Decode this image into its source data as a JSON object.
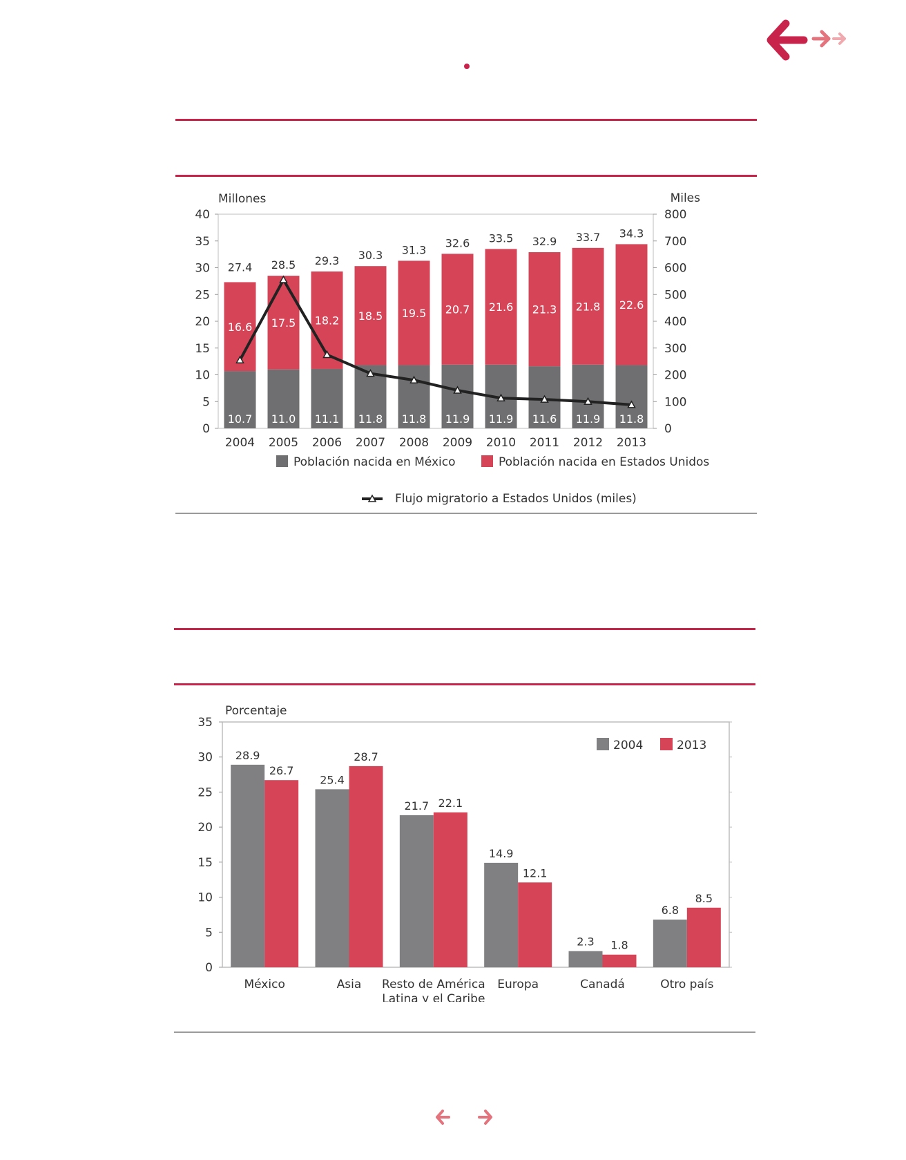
{
  "colors": {
    "accent": "#c8234b",
    "mexico_gray": "#6f6f71",
    "us_red": "#d54557",
    "gray_2004": "#808083",
    "red_2013": "#d54557",
    "line": "#222222",
    "rule_gray": "#9a9a9a"
  },
  "nav": {
    "back_icon": "arrow-left-icon",
    "forward_icon": "arrow-right-icon",
    "bottom_prev_icon": "arrow-left-small-icon",
    "bottom_next_icon": "arrow-right-small-icon"
  },
  "chart_data": [
    {
      "type": "bar",
      "stacked": true,
      "categories": [
        "2004",
        "2005",
        "2006",
        "2007",
        "2008",
        "2009",
        "2010",
        "2011",
        "2012",
        "2013"
      ],
      "series": [
        {
          "name": "Población nacida en México",
          "values": [
            10.7,
            11.0,
            11.1,
            11.8,
            11.8,
            11.9,
            11.9,
            11.6,
            11.9,
            11.8
          ]
        },
        {
          "name": "Población nacida en Estados Unidos",
          "values": [
            16.6,
            17.5,
            18.2,
            18.5,
            19.5,
            20.7,
            21.6,
            21.3,
            21.8,
            22.6
          ]
        }
      ],
      "totals": [
        27.4,
        28.5,
        29.3,
        30.3,
        31.3,
        32.6,
        33.5,
        32.9,
        33.7,
        34.3
      ],
      "line_series": {
        "name": "Flujo migratorio a Estados Unidos (miles)",
        "axis": "right",
        "values": [
          255,
          555,
          275,
          205,
          180,
          142,
          113,
          108,
          100,
          88
        ]
      },
      "ylabel_left": "Millones",
      "ylabel_right": "Miles",
      "ylim_left": [
        0,
        40
      ],
      "ylim_right": [
        0,
        800
      ],
      "yticks_left": [
        "0",
        "5",
        "10",
        "15",
        "20",
        "25",
        "30",
        "35",
        "40"
      ],
      "yticks_right": [
        "0",
        "100",
        "200",
        "300",
        "400",
        "500",
        "600",
        "700",
        "800"
      ],
      "legend_placement": "bottom",
      "grid": false
    },
    {
      "type": "bar",
      "categories": [
        "México",
        "Asia",
        "Resto de América Latina y el Caribe",
        "Europa",
        "Canadá",
        "Otro país"
      ],
      "category_lines": [
        [
          "México"
        ],
        [
          "Asia"
        ],
        [
          "Resto de América",
          "Latina y el Caribe"
        ],
        [
          "Europa"
        ],
        [
          "Canadá"
        ],
        [
          "Otro país"
        ]
      ],
      "series": [
        {
          "name": "2004",
          "values": [
            28.9,
            25.4,
            21.7,
            14.9,
            2.3,
            6.8
          ]
        },
        {
          "name": "2013",
          "values": [
            26.7,
            28.7,
            22.1,
            12.1,
            1.8,
            8.5
          ]
        }
      ],
      "ylabel": "Porcentaje",
      "ylim": [
        0,
        35
      ],
      "yticks": [
        "0",
        "5",
        "10",
        "15",
        "20",
        "25",
        "30",
        "35"
      ],
      "legend_placement": "top-right",
      "grid": false
    }
  ]
}
